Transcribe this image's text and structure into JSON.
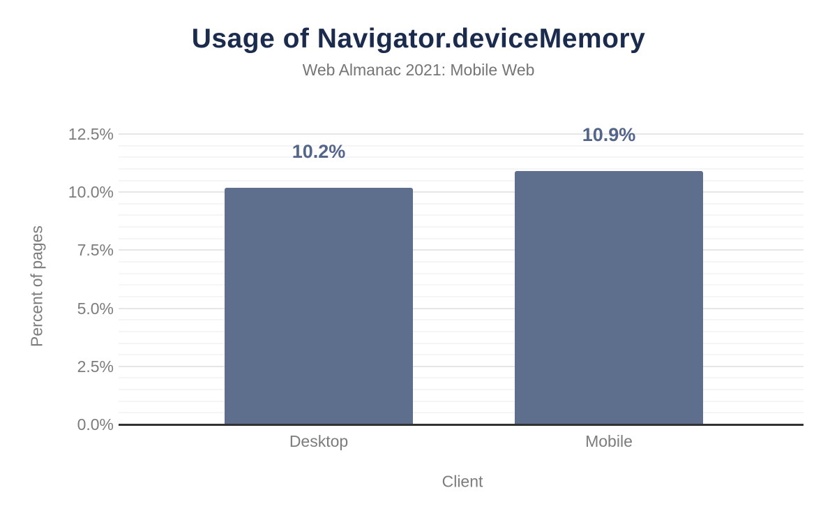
{
  "chart_data": {
    "type": "bar",
    "title": "Usage of Navigator.deviceMemory",
    "subtitle": "Web Almanac 2021: Mobile Web",
    "xlabel": "Client",
    "ylabel": "Percent of pages",
    "categories": [
      "Desktop",
      "Mobile"
    ],
    "values": [
      10.2,
      10.9
    ],
    "data_labels": [
      "10.2%",
      "10.9%"
    ],
    "ylim": [
      0,
      12.5
    ],
    "ytick_step": 2.5,
    "yminor_step": 0.5,
    "ytick_labels": [
      "0.0%",
      "2.5%",
      "5.0%",
      "7.5%",
      "10.0%",
      "12.5%"
    ],
    "grid": true,
    "legend": "none"
  },
  "colors": {
    "background": "#ffffff",
    "bar": "#5d6f8c",
    "value_label": "#53658a",
    "title": "#1b2b4d",
    "subtitle": "#757575",
    "axis_text": "#7c7c7c",
    "grid_major": "#e6e6e6",
    "grid_minor": "#f5f5f5",
    "baseline": "#313131"
  }
}
